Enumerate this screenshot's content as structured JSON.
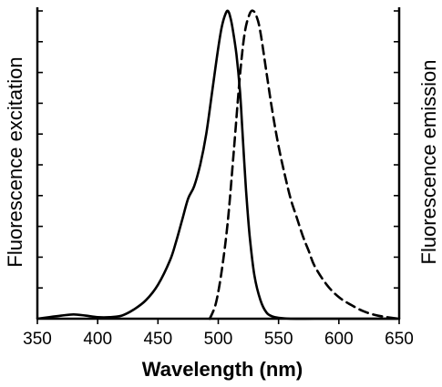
{
  "chart_data": {
    "type": "line",
    "xlabel": "Wavelength (nm)",
    "ylabel_left": "Fluorescence excitation",
    "ylabel_right": "Fluorescence emission",
    "xlim": [
      350,
      650
    ],
    "ylim": [
      0,
      1
    ],
    "x_ticks": [
      350,
      400,
      450,
      500,
      550,
      600,
      650
    ],
    "y_ticks_count": 10,
    "legend": "none",
    "grid": false,
    "series": [
      {
        "style": "solid",
        "x": [
          350,
          360,
          370,
          380,
          390,
          400,
          410,
          420,
          430,
          440,
          450,
          460,
          465,
          470,
          475,
          480,
          485,
          490,
          495,
          500,
          503,
          506,
          508,
          510,
          512,
          515,
          518,
          520,
          523,
          526,
          530,
          535,
          540,
          545,
          550,
          560,
          580,
          600,
          620,
          640,
          650
        ],
        "y": [
          0.0,
          0.005,
          0.01,
          0.014,
          0.01,
          0.005,
          0.005,
          0.01,
          0.03,
          0.06,
          0.11,
          0.19,
          0.25,
          0.32,
          0.39,
          0.43,
          0.5,
          0.6,
          0.74,
          0.88,
          0.95,
          0.99,
          1.0,
          0.98,
          0.94,
          0.86,
          0.74,
          0.61,
          0.42,
          0.27,
          0.14,
          0.06,
          0.02,
          0.007,
          0.003,
          0.0,
          0.0,
          0.0,
          0.0,
          0.0,
          0.0
        ]
      },
      {
        "style": "dashed",
        "x": [
          493,
          498,
          503,
          508,
          513,
          518,
          522,
          526,
          529,
          532,
          535,
          540,
          545,
          550,
          555,
          560,
          565,
          570,
          575,
          580,
          590,
          600,
          610,
          620,
          630,
          640,
          650
        ],
        "y": [
          0.0,
          0.05,
          0.16,
          0.32,
          0.55,
          0.79,
          0.93,
          0.99,
          1.0,
          0.98,
          0.93,
          0.8,
          0.67,
          0.56,
          0.47,
          0.39,
          0.33,
          0.27,
          0.22,
          0.17,
          0.11,
          0.07,
          0.045,
          0.025,
          0.012,
          0.005,
          0.0
        ]
      }
    ]
  }
}
